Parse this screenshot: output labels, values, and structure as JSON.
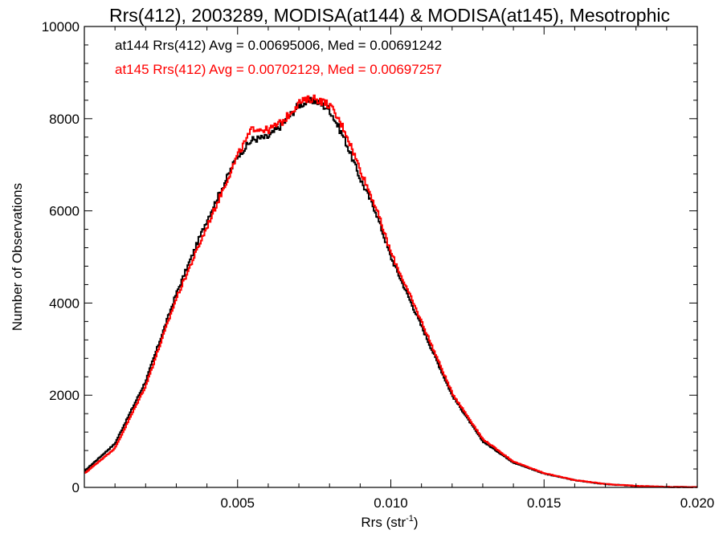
{
  "chart_data": {
    "type": "line",
    "title": "Rrs(412), 2003289, MODISA(at144) & MODISA(at145), Mesotrophic",
    "xlabel": "Rrs (str",
    "xlabel_sup": "-1",
    "xlabel_close": ")",
    "ylabel": "Number of Observations",
    "xlim": [
      0.0,
      0.02
    ],
    "ylim": [
      0,
      10000
    ],
    "x_ticks": [
      0.005,
      0.01,
      0.015,
      0.02
    ],
    "x_tick_labels": [
      "0.005",
      "0.010",
      "0.015",
      "0.020"
    ],
    "y_ticks": [
      0,
      2000,
      4000,
      6000,
      8000,
      10000
    ],
    "y_tick_labels": [
      "0",
      "2000",
      "4000",
      "6000",
      "8000",
      "10000"
    ],
    "grid": false,
    "legend_placement": "top-left",
    "annotations": [
      {
        "text": "at144 Rrs(412) Avg = 0.00695006, Med = 0.00691242",
        "color": "#000000"
      },
      {
        "text": "at145 Rrs(412) Avg = 0.00702129, Med = 0.00697257",
        "color": "#ff0000"
      }
    ],
    "series": [
      {
        "color": "#000000",
        "x": [
          0.0,
          0.001,
          0.002,
          0.003,
          0.004,
          0.005,
          0.0055,
          0.006,
          0.0065,
          0.007,
          0.0075,
          0.008,
          0.0085,
          0.009,
          0.0095,
          0.01,
          0.011,
          0.012,
          0.013,
          0.014,
          0.015,
          0.016,
          0.017,
          0.018,
          0.019,
          0.02
        ],
        "values": [
          350,
          950,
          2300,
          4200,
          5800,
          7200,
          7550,
          7600,
          7900,
          8300,
          8400,
          8200,
          7550,
          6700,
          6000,
          5000,
          3500,
          2000,
          1000,
          540,
          300,
          155,
          70,
          30,
          10,
          5
        ]
      },
      {
        "color": "#ff0000",
        "x": [
          0.0,
          0.001,
          0.002,
          0.003,
          0.004,
          0.005,
          0.0055,
          0.006,
          0.0065,
          0.007,
          0.0075,
          0.008,
          0.0085,
          0.009,
          0.0095,
          0.01,
          0.011,
          0.012,
          0.013,
          0.014,
          0.015,
          0.016,
          0.017,
          0.018,
          0.019,
          0.02
        ],
        "values": [
          300,
          850,
          2200,
          4100,
          5650,
          7200,
          7800,
          7750,
          7950,
          8350,
          8450,
          8300,
          7750,
          6900,
          6100,
          5100,
          3600,
          2050,
          1050,
          560,
          310,
          160,
          75,
          32,
          10,
          5
        ]
      }
    ]
  }
}
